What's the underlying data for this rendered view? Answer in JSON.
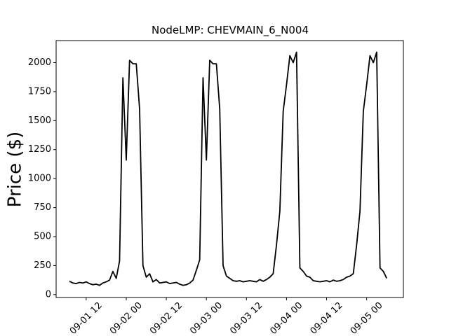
{
  "chart_data": {
    "type": "line",
    "title": "NodeLMP: CHEVMAIN_6_N004",
    "y_label": "Price ($)",
    "x": [
      "09-01 07",
      "09-01 08",
      "09-01 09",
      "09-01 10",
      "09-01 11",
      "09-01 12",
      "09-01 13",
      "09-01 14",
      "09-01 15",
      "09-01 16",
      "09-01 17",
      "09-01 18",
      "09-01 19",
      "09-01 20",
      "09-01 21",
      "09-01 22",
      "09-01 23",
      "09-02 00",
      "09-02 01",
      "09-02 02",
      "09-02 03",
      "09-02 04",
      "09-02 05",
      "09-02 06",
      "09-02 07",
      "09-02 08",
      "09-02 09",
      "09-02 10",
      "09-02 11",
      "09-02 12",
      "09-02 13",
      "09-02 14",
      "09-02 15",
      "09-02 16",
      "09-02 17",
      "09-02 18",
      "09-02 19",
      "09-02 20",
      "09-02 21",
      "09-02 22",
      "09-02 23",
      "09-03 00",
      "09-03 01",
      "09-03 02",
      "09-03 03",
      "09-03 04",
      "09-03 05",
      "09-03 06",
      "09-03 07",
      "09-03 08",
      "09-03 09",
      "09-03 10",
      "09-03 11",
      "09-03 12",
      "09-03 13",
      "09-03 14",
      "09-03 15",
      "09-03 16",
      "09-03 17",
      "09-03 18",
      "09-03 19",
      "09-03 20",
      "09-03 21",
      "09-03 22",
      "09-03 23",
      "09-04 00",
      "09-04 01",
      "09-04 02",
      "09-04 03",
      "09-04 04",
      "09-04 05",
      "09-04 06",
      "09-04 07",
      "09-04 08",
      "09-04 09",
      "09-04 10",
      "09-04 11",
      "09-04 12",
      "09-04 13",
      "09-04 14",
      "09-04 15",
      "09-04 16",
      "09-04 17",
      "09-04 18",
      "09-04 19",
      "09-04 20",
      "09-04 21",
      "09-04 22",
      "09-04 23",
      "09-05 00",
      "09-05 01",
      "09-05 02",
      "09-05 03",
      "09-05 04",
      "09-05 05",
      "09-05 06"
    ],
    "series": [
      {
        "name": "CHEVMAIN_6_N004",
        "color": "#000000",
        "values": [
          115,
          100,
          95,
          105,
          100,
          110,
          95,
          85,
          90,
          80,
          100,
          110,
          125,
          200,
          140,
          290,
          1870,
          1160,
          2020,
          1990,
          1990,
          1600,
          250,
          150,
          180,
          110,
          130,
          100,
          105,
          110,
          95,
          100,
          105,
          90,
          80,
          85,
          100,
          125,
          210,
          300,
          1870,
          1160,
          2020,
          1990,
          1990,
          1600,
          250,
          160,
          140,
          120,
          115,
          120,
          110,
          115,
          120,
          115,
          110,
          130,
          115,
          130,
          150,
          180,
          430,
          720,
          1580,
          1810,
          2060,
          2000,
          2090,
          230,
          200,
          160,
          150,
          120,
          115,
          110,
          115,
          120,
          110,
          125,
          115,
          120,
          130,
          150,
          160,
          180,
          430,
          720,
          1580,
          1810,
          2060,
          2000,
          2090,
          230,
          200,
          140
        ]
      }
    ],
    "xlim": [
      "09-01 03",
      "09-05 11"
    ],
    "xticks": [
      "09-01 12",
      "09-02 00",
      "09-02 12",
      "09-03 00",
      "09-03 12",
      "09-04 00",
      "09-04 12",
      "09-05 00"
    ],
    "ylim": [
      -25,
      2190
    ],
    "yticks": [
      0,
      250,
      500,
      750,
      1000,
      1250,
      1500,
      1750,
      2000
    ]
  }
}
